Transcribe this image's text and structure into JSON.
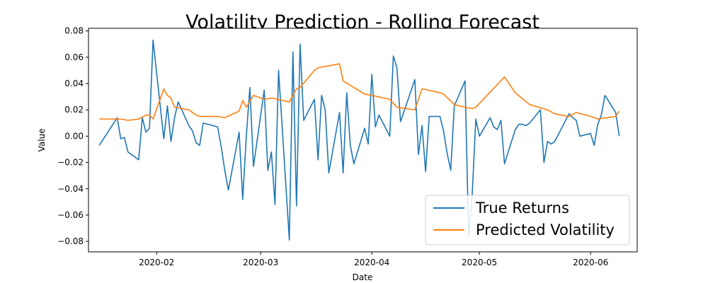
{
  "chart_data": {
    "type": "line",
    "title": "Volatility Prediction - Rolling Forecast",
    "xlabel": "Date",
    "ylabel": "Value",
    "x_axis": "date",
    "xlim": [
      "2020-01-13",
      "2020-06-14"
    ],
    "ylim": [
      -0.088,
      0.082
    ],
    "x_ticks": [
      "2020-02-01",
      "2020-03-01",
      "2020-04-01",
      "2020-05-01",
      "2020-06-01"
    ],
    "x_tick_labels": [
      "2020-02",
      "2020-03",
      "2020-04",
      "2020-05",
      "2020-06"
    ],
    "y_ticks": [
      -0.08,
      -0.06,
      -0.04,
      -0.02,
      0.0,
      0.02,
      0.04,
      0.06,
      0.08
    ],
    "y_tick_labels": [
      "−0.08",
      "−0.06",
      "−0.04",
      "−0.02",
      "0.00",
      "0.02",
      "0.04",
      "0.06",
      "0.08"
    ],
    "grid": false,
    "legend_position": "bottom-right",
    "series": [
      {
        "name": "True Returns",
        "color": "#1f77b4",
        "x": [
          "2020-01-16",
          "2020-01-21",
          "2020-01-22",
          "2020-01-23",
          "2020-01-24",
          "2020-01-27",
          "2020-01-28",
          "2020-01-29",
          "2020-01-30",
          "2020-01-31",
          "2020-02-03",
          "2020-02-04",
          "2020-02-05",
          "2020-02-06",
          "2020-02-07",
          "2020-02-10",
          "2020-02-11",
          "2020-02-12",
          "2020-02-13",
          "2020-02-14",
          "2020-02-18",
          "2020-02-19",
          "2020-02-20",
          "2020-02-21",
          "2020-02-24",
          "2020-02-25",
          "2020-02-26",
          "2020-02-27",
          "2020-02-28",
          "2020-03-02",
          "2020-03-03",
          "2020-03-04",
          "2020-03-05",
          "2020-03-06",
          "2020-03-09",
          "2020-03-10",
          "2020-03-11",
          "2020-03-12",
          "2020-03-13",
          "2020-03-16",
          "2020-03-17",
          "2020-03-18",
          "2020-03-19",
          "2020-03-20",
          "2020-03-23",
          "2020-03-24",
          "2020-03-25",
          "2020-03-26",
          "2020-03-27",
          "2020-03-30",
          "2020-03-31",
          "2020-04-01",
          "2020-04-02",
          "2020-04-03",
          "2020-04-06",
          "2020-04-07",
          "2020-04-08",
          "2020-04-09",
          "2020-04-13",
          "2020-04-14",
          "2020-04-15",
          "2020-04-16",
          "2020-04-17",
          "2020-04-20",
          "2020-04-21",
          "2020-04-22",
          "2020-04-23",
          "2020-04-24",
          "2020-04-27",
          "2020-04-28",
          "2020-04-29",
          "2020-04-30",
          "2020-05-01",
          "2020-05-04",
          "2020-05-05",
          "2020-05-06",
          "2020-05-07",
          "2020-05-08",
          "2020-05-11",
          "2020-05-12",
          "2020-05-13",
          "2020-05-14",
          "2020-05-15",
          "2020-05-18",
          "2020-05-19",
          "2020-05-20",
          "2020-05-21",
          "2020-05-22",
          "2020-05-26",
          "2020-05-27",
          "2020-05-28",
          "2020-05-29",
          "2020-06-01",
          "2020-06-02",
          "2020-06-03",
          "2020-06-04",
          "2020-06-05",
          "2020-06-08",
          "2020-06-09"
        ],
        "values": [
          -0.007,
          0.014,
          -0.002,
          -0.001,
          -0.012,
          -0.018,
          0.014,
          0.003,
          0.006,
          0.073,
          -0.002,
          0.023,
          -0.004,
          0.014,
          0.026,
          0.008,
          0.004,
          -0.005,
          -0.007,
          0.01,
          0.007,
          -0.008,
          -0.026,
          -0.041,
          0.003,
          -0.048,
          0.0,
          0.037,
          -0.023,
          0.035,
          -0.026,
          -0.012,
          -0.052,
          0.05,
          -0.079,
          0.064,
          -0.053,
          0.07,
          0.012,
          0.028,
          -0.018,
          0.031,
          0.02,
          -0.028,
          0.018,
          -0.028,
          0.033,
          -0.007,
          -0.021,
          0.006,
          -0.006,
          0.047,
          0.007,
          0.016,
          0.0,
          0.061,
          0.052,
          0.011,
          0.043,
          -0.014,
          0.008,
          -0.027,
          0.015,
          0.015,
          0.004,
          -0.013,
          -0.026,
          0.023,
          0.042,
          -0.076,
          -0.044,
          0.013,
          0.0,
          0.014,
          0.007,
          0.005,
          0.012,
          -0.021,
          0.005,
          0.009,
          0.009,
          0.008,
          0.01,
          0.02,
          -0.02,
          -0.004,
          -0.006,
          -0.004,
          0.017,
          0.014,
          0.012,
          0.0,
          0.002,
          -0.007,
          0.009,
          0.016,
          0.031,
          0.018,
          0.0
        ]
      },
      {
        "name": "Predicted Volatility",
        "color": "#ff7f0e",
        "x": [
          "2020-01-16",
          "2020-01-21",
          "2020-01-22",
          "2020-01-24",
          "2020-01-27",
          "2020-01-29",
          "2020-01-30",
          "2020-01-31",
          "2020-02-03",
          "2020-02-04",
          "2020-02-05",
          "2020-02-06",
          "2020-02-10",
          "2020-02-12",
          "2020-02-13",
          "2020-02-18",
          "2020-02-20",
          "2020-02-24",
          "2020-02-25",
          "2020-02-26",
          "2020-02-28",
          "2020-03-02",
          "2020-03-04",
          "2020-03-09",
          "2020-03-11",
          "2020-03-12",
          "2020-03-16",
          "2020-03-17",
          "2020-03-19",
          "2020-03-23",
          "2020-03-24",
          "2020-03-30",
          "2020-04-01",
          "2020-04-06",
          "2020-04-08",
          "2020-04-13",
          "2020-04-15",
          "2020-04-20",
          "2020-04-21",
          "2020-04-24",
          "2020-04-27",
          "2020-04-29",
          "2020-04-30",
          "2020-05-08",
          "2020-05-11",
          "2020-05-15",
          "2020-05-20",
          "2020-05-22",
          "2020-05-26",
          "2020-05-28",
          "2020-06-01",
          "2020-06-03",
          "2020-06-08",
          "2020-06-09"
        ],
        "values": [
          0.013,
          0.013,
          0.013,
          0.012,
          0.013,
          0.016,
          0.016,
          0.013,
          0.036,
          0.031,
          0.029,
          0.022,
          0.02,
          0.016,
          0.015,
          0.015,
          0.014,
          0.019,
          0.027,
          0.022,
          0.031,
          0.028,
          0.029,
          0.026,
          0.036,
          0.037,
          0.05,
          0.052,
          0.053,
          0.055,
          0.042,
          0.032,
          0.031,
          0.028,
          0.022,
          0.02,
          0.036,
          0.033,
          0.032,
          0.024,
          0.022,
          0.021,
          0.022,
          0.045,
          0.033,
          0.024,
          0.02,
          0.017,
          0.015,
          0.018,
          0.015,
          0.013,
          0.015,
          0.019
        ]
      }
    ]
  }
}
